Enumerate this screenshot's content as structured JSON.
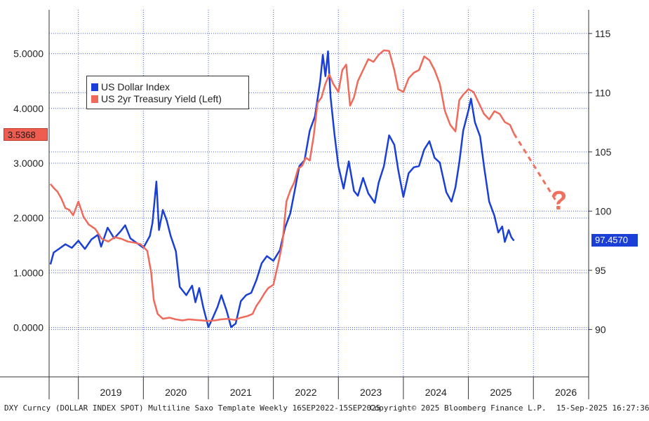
{
  "chart_data": {
    "type": "line",
    "title": "",
    "left_axis": {
      "label": "",
      "ticks": [
        "0.0000",
        "1.0000",
        "2.0000",
        "3.0000",
        "4.0000",
        "5.0000"
      ],
      "range": [
        -0.9,
        5.8
      ]
    },
    "right_axis": {
      "label": "",
      "ticks": [
        "90",
        "95",
        "100",
        "105",
        "110",
        "115"
      ],
      "range": [
        86,
        117
      ]
    },
    "x_axis": {
      "years": [
        "2019",
        "2020",
        "2021",
        "2022",
        "2023",
        "2024",
        "2025",
        "2026"
      ],
      "range": [
        2018.55,
        2026.85
      ]
    },
    "grid": true,
    "legend_position": "top-left",
    "series": [
      {
        "name": "US Dollar Index",
        "axis": "right",
        "color": "#1a3fd6",
        "points": [
          [
            2018.57,
            95.5
          ],
          [
            2018.62,
            96.5
          ],
          [
            2018.7,
            96.8
          ],
          [
            2018.8,
            97.2
          ],
          [
            2018.9,
            96.9
          ],
          [
            2019.0,
            97.5
          ],
          [
            2019.1,
            96.8
          ],
          [
            2019.2,
            97.6
          ],
          [
            2019.3,
            98.0
          ],
          [
            2019.35,
            97.0
          ],
          [
            2019.45,
            98.6
          ],
          [
            2019.55,
            97.7
          ],
          [
            2019.65,
            98.3
          ],
          [
            2019.72,
            98.8
          ],
          [
            2019.8,
            97.7
          ],
          [
            2019.9,
            97.3
          ],
          [
            2020.0,
            96.9
          ],
          [
            2020.1,
            97.9
          ],
          [
            2020.14,
            99.0
          ],
          [
            2020.2,
            102.5
          ],
          [
            2020.24,
            98.4
          ],
          [
            2020.3,
            100.1
          ],
          [
            2020.36,
            99.2
          ],
          [
            2020.42,
            97.9
          ],
          [
            2020.5,
            96.6
          ],
          [
            2020.56,
            93.6
          ],
          [
            2020.66,
            92.9
          ],
          [
            2020.75,
            93.7
          ],
          [
            2020.8,
            92.3
          ],
          [
            2020.86,
            93.5
          ],
          [
            2020.92,
            91.9
          ],
          [
            2021.0,
            90.2
          ],
          [
            2021.06,
            90.9
          ],
          [
            2021.14,
            91.9
          ],
          [
            2021.2,
            92.9
          ],
          [
            2021.28,
            91.6
          ],
          [
            2021.35,
            90.2
          ],
          [
            2021.42,
            90.5
          ],
          [
            2021.5,
            92.4
          ],
          [
            2021.58,
            92.9
          ],
          [
            2021.66,
            93.1
          ],
          [
            2021.74,
            94.2
          ],
          [
            2021.82,
            95.6
          ],
          [
            2021.9,
            96.2
          ],
          [
            2022.0,
            95.8
          ],
          [
            2022.1,
            96.7
          ],
          [
            2022.18,
            98.6
          ],
          [
            2022.26,
            99.8
          ],
          [
            2022.32,
            101.5
          ],
          [
            2022.4,
            103.8
          ],
          [
            2022.48,
            104.3
          ],
          [
            2022.56,
            106.8
          ],
          [
            2022.64,
            108.0
          ],
          [
            2022.72,
            111.0
          ],
          [
            2022.76,
            113.2
          ],
          [
            2022.8,
            111.4
          ],
          [
            2022.84,
            113.5
          ],
          [
            2022.88,
            109.6
          ],
          [
            2022.94,
            106.5
          ],
          [
            2023.0,
            103.8
          ],
          [
            2023.08,
            101.9
          ],
          [
            2023.16,
            104.2
          ],
          [
            2023.24,
            101.7
          ],
          [
            2023.3,
            101.3
          ],
          [
            2023.38,
            102.8
          ],
          [
            2023.46,
            101.5
          ],
          [
            2023.56,
            100.7
          ],
          [
            2023.62,
            102.4
          ],
          [
            2023.7,
            103.8
          ],
          [
            2023.78,
            106.4
          ],
          [
            2023.86,
            105.6
          ],
          [
            2023.92,
            103.5
          ],
          [
            2024.0,
            101.2
          ],
          [
            2024.08,
            103.2
          ],
          [
            2024.16,
            103.7
          ],
          [
            2024.24,
            103.8
          ],
          [
            2024.32,
            105.2
          ],
          [
            2024.4,
            105.9
          ],
          [
            2024.48,
            104.5
          ],
          [
            2024.56,
            104.1
          ],
          [
            2024.66,
            101.6
          ],
          [
            2024.74,
            100.8
          ],
          [
            2024.8,
            102.0
          ],
          [
            2024.86,
            104.1
          ],
          [
            2024.92,
            106.8
          ],
          [
            2025.0,
            108.5
          ],
          [
            2025.04,
            109.5
          ],
          [
            2025.1,
            107.5
          ],
          [
            2025.18,
            106.3
          ],
          [
            2025.24,
            103.8
          ],
          [
            2025.32,
            100.8
          ],
          [
            2025.4,
            99.6
          ],
          [
            2025.46,
            98.2
          ],
          [
            2025.52,
            98.7
          ],
          [
            2025.56,
            97.4
          ],
          [
            2025.62,
            98.4
          ],
          [
            2025.66,
            97.8
          ],
          [
            2025.7,
            97.5
          ]
        ]
      },
      {
        "name": "US 2yr Treasury Yield (Left)",
        "axis": "left",
        "color": "#ef6a5a",
        "points": [
          [
            2018.57,
            2.62
          ],
          [
            2018.62,
            2.55
          ],
          [
            2018.68,
            2.48
          ],
          [
            2018.74,
            2.35
          ],
          [
            2018.8,
            2.18
          ],
          [
            2018.86,
            2.15
          ],
          [
            2018.92,
            2.05
          ],
          [
            2019.0,
            2.3
          ],
          [
            2019.08,
            2.02
          ],
          [
            2019.16,
            1.88
          ],
          [
            2019.26,
            1.8
          ],
          [
            2019.36,
            1.62
          ],
          [
            2019.46,
            1.57
          ],
          [
            2019.56,
            1.65
          ],
          [
            2019.66,
            1.62
          ],
          [
            2019.76,
            1.57
          ],
          [
            2019.86,
            1.55
          ],
          [
            2019.96,
            1.52
          ],
          [
            2020.06,
            1.4
          ],
          [
            2020.12,
            1.0
          ],
          [
            2020.16,
            0.5
          ],
          [
            2020.22,
            0.25
          ],
          [
            2020.3,
            0.16
          ],
          [
            2020.4,
            0.18
          ],
          [
            2020.5,
            0.15
          ],
          [
            2020.6,
            0.13
          ],
          [
            2020.7,
            0.15
          ],
          [
            2020.8,
            0.14
          ],
          [
            2020.9,
            0.13
          ],
          [
            2021.0,
            0.12
          ],
          [
            2021.1,
            0.13
          ],
          [
            2021.2,
            0.15
          ],
          [
            2021.3,
            0.16
          ],
          [
            2021.4,
            0.14
          ],
          [
            2021.5,
            0.18
          ],
          [
            2021.6,
            0.21
          ],
          [
            2021.68,
            0.25
          ],
          [
            2021.74,
            0.4
          ],
          [
            2021.8,
            0.5
          ],
          [
            2021.86,
            0.62
          ],
          [
            2021.92,
            0.72
          ],
          [
            2022.0,
            0.78
          ],
          [
            2022.08,
            1.2
          ],
          [
            2022.14,
            1.55
          ],
          [
            2022.2,
            2.3
          ],
          [
            2022.26,
            2.5
          ],
          [
            2022.32,
            2.65
          ],
          [
            2022.38,
            2.9
          ],
          [
            2022.44,
            2.95
          ],
          [
            2022.5,
            3.1
          ],
          [
            2022.56,
            3.05
          ],
          [
            2022.62,
            3.5
          ],
          [
            2022.68,
            4.1
          ],
          [
            2022.74,
            4.2
          ],
          [
            2022.8,
            4.45
          ],
          [
            2022.86,
            4.62
          ],
          [
            2022.92,
            4.45
          ],
          [
            2023.0,
            4.3
          ],
          [
            2023.06,
            4.7
          ],
          [
            2023.12,
            4.8
          ],
          [
            2023.18,
            4.05
          ],
          [
            2023.24,
            4.2
          ],
          [
            2023.3,
            4.5
          ],
          [
            2023.38,
            4.7
          ],
          [
            2023.46,
            4.9
          ],
          [
            2023.54,
            4.85
          ],
          [
            2023.62,
            4.98
          ],
          [
            2023.7,
            5.06
          ],
          [
            2023.78,
            5.05
          ],
          [
            2023.86,
            4.7
          ],
          [
            2023.92,
            4.35
          ],
          [
            2024.0,
            4.3
          ],
          [
            2024.08,
            4.55
          ],
          [
            2024.16,
            4.65
          ],
          [
            2024.24,
            4.7
          ],
          [
            2024.32,
            4.95
          ],
          [
            2024.4,
            4.88
          ],
          [
            2024.48,
            4.7
          ],
          [
            2024.56,
            4.45
          ],
          [
            2024.64,
            3.95
          ],
          [
            2024.72,
            3.7
          ],
          [
            2024.8,
            3.58
          ],
          [
            2024.86,
            4.15
          ],
          [
            2024.92,
            4.25
          ],
          [
            2025.0,
            4.35
          ],
          [
            2025.08,
            4.3
          ],
          [
            2025.16,
            4.1
          ],
          [
            2025.24,
            3.9
          ],
          [
            2025.32,
            3.8
          ],
          [
            2025.4,
            3.95
          ],
          [
            2025.48,
            3.9
          ],
          [
            2025.56,
            3.75
          ],
          [
            2025.64,
            3.7
          ],
          [
            2025.7,
            3.54
          ]
        ]
      }
    ],
    "projection": {
      "axis": "left",
      "color": "#f07060",
      "dashed": true,
      "points": [
        [
          2025.7,
          3.54
        ],
        [
          2026.38,
          2.25
        ]
      ]
    },
    "annotations": {
      "left_last_value": "3.5368",
      "right_last_value": "97.4570",
      "question_mark": "?"
    }
  },
  "footer": {
    "left": "DXY Curncy (DOLLAR INDEX SPOT) Multiline Saxo Template  Weekly 16SEP2022-15SEP2025",
    "center": "Copyright© 2025 Bloomberg Finance L.P.",
    "right": "15-Sep-2025 16:27:36"
  }
}
